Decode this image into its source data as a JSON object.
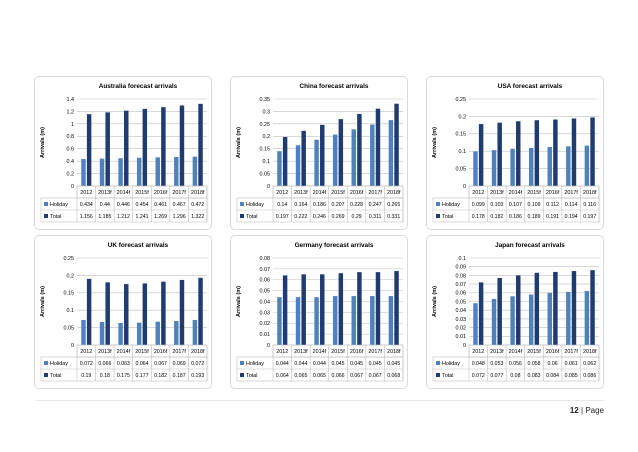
{
  "row_labels": [
    "Holiday",
    "Total"
  ],
  "colors": {
    "holiday": "#4f81bd",
    "total": "#1f3b70",
    "grid": "#bfbfbf",
    "border": "#bfbfbf"
  },
  "footer": {
    "page_number": "12",
    "separator": "|",
    "page_label": "Page"
  },
  "chart_data": [
    {
      "type": "bar",
      "title": "Australia forecast arrivals",
      "ylabel": "Arrivals (m)",
      "categories": [
        "2012",
        "2013f",
        "2014f",
        "2015f",
        "2016f",
        "2017f",
        "2018f"
      ],
      "series": [
        {
          "name": "Holiday",
          "values": [
            0.434,
            0.44,
            0.446,
            0.454,
            0.461,
            0.467,
            0.472
          ]
        },
        {
          "name": "Total",
          "values": [
            1.156,
            1.185,
            1.212,
            1.241,
            1.269,
            1.296,
            1.322
          ]
        }
      ],
      "ylim": [
        0,
        1.4
      ],
      "yticks": [
        "0",
        "0.2",
        "0.4",
        "0.6",
        "0.8",
        "1",
        "1.2",
        "1.4"
      ],
      "data_table": [
        [
          "0.434",
          "0.44",
          "0.446",
          "0.454",
          "0.461",
          "0.467",
          "0.472"
        ],
        [
          "1.156",
          "1.185",
          "1.212",
          "1.241",
          "1.269",
          "1.296",
          "1.322"
        ]
      ]
    },
    {
      "type": "bar",
      "title": "China forecast arrivals",
      "ylabel": "Arrivals (m)",
      "categories": [
        "2012",
        "2013f",
        "2014f",
        "2015f",
        "2016f",
        "2017f",
        "2018f"
      ],
      "series": [
        {
          "name": "Holiday",
          "values": [
            0.14,
            0.164,
            0.186,
            0.207,
            0.228,
            0.247,
            0.265
          ]
        },
        {
          "name": "Total",
          "values": [
            0.197,
            0.222,
            0.246,
            0.269,
            0.29,
            0.311,
            0.331
          ]
        }
      ],
      "ylim": [
        0,
        0.35
      ],
      "yticks": [
        "0",
        "0.05",
        "0.1",
        "0.15",
        "0.2",
        "0.25",
        "0.3",
        "0.35"
      ],
      "data_table": [
        [
          "0.14",
          "0.164",
          "0.186",
          "0.207",
          "0.228",
          "0.247",
          "0.265"
        ],
        [
          "0.197",
          "0.222",
          "0.246",
          "0.269",
          "0.29",
          "0.311",
          "0.331"
        ]
      ]
    },
    {
      "type": "bar",
      "title": "USA forecast arrivals",
      "ylabel": "Arrivals (m)",
      "categories": [
        "2012",
        "2013f",
        "2014f",
        "2015f",
        "2016f",
        "2017f",
        "2018f"
      ],
      "series": [
        {
          "name": "Holiday",
          "values": [
            0.099,
            0.103,
            0.107,
            0.109,
            0.112,
            0.114,
            0.116
          ]
        },
        {
          "name": "Total",
          "values": [
            0.178,
            0.182,
            0.186,
            0.189,
            0.191,
            0.194,
            0.197
          ]
        }
      ],
      "ylim": [
        0,
        0.25
      ],
      "yticks": [
        "0",
        "0.05",
        "0.1",
        "0.15",
        "0.2",
        "0.25"
      ],
      "data_table": [
        [
          "0.099",
          "0.103",
          "0.107",
          "0.109",
          "0.112",
          "0.114",
          "0.116"
        ],
        [
          "0.178",
          "0.182",
          "0.186",
          "0.189",
          "0.191",
          "0.194",
          "0.197"
        ]
      ]
    },
    {
      "type": "bar",
      "title": "UK forecast arrivals",
      "ylabel": "Arrivals (m)",
      "categories": [
        "2012",
        "2013f",
        "2014f",
        "2015f",
        "2016f",
        "2017f",
        "2018f"
      ],
      "series": [
        {
          "name": "Holiday",
          "values": [
            0.072,
            0.066,
            0.063,
            0.064,
            0.067,
            0.069,
            0.072
          ]
        },
        {
          "name": "Total",
          "values": [
            0.19,
            0.18,
            0.175,
            0.177,
            0.182,
            0.187,
            0.193
          ]
        }
      ],
      "ylim": [
        0,
        0.25
      ],
      "yticks": [
        "0",
        "0.05",
        "0.1",
        "0.15",
        "0.2",
        "0.25"
      ],
      "data_table": [
        [
          "0.072",
          "0.066",
          "0.063",
          "0.064",
          "0.067",
          "0.069",
          "0.072"
        ],
        [
          "0.19",
          "0.18",
          "0.175",
          "0.177",
          "0.182",
          "0.187",
          "0.193"
        ]
      ]
    },
    {
      "type": "bar",
      "title": "Germany forecast arrivals",
      "ylabel": "Arrivals (m)",
      "categories": [
        "2012",
        "2013f",
        "2014f",
        "2015f",
        "2016f",
        "2017f",
        "2018f"
      ],
      "series": [
        {
          "name": "Holiday",
          "values": [
            0.044,
            0.044,
            0.044,
            0.045,
            0.045,
            0.045,
            0.045
          ]
        },
        {
          "name": "Total",
          "values": [
            0.064,
            0.065,
            0.065,
            0.066,
            0.067,
            0.067,
            0.068
          ]
        }
      ],
      "ylim": [
        0,
        0.08
      ],
      "yticks": [
        "0",
        "0.01",
        "0.02",
        "0.03",
        "0.04",
        "0.05",
        "0.06",
        "0.07",
        "0.08"
      ],
      "data_table": [
        [
          "0.044",
          "0.044",
          "0.044",
          "0.045",
          "0.045",
          "0.045",
          "0.045"
        ],
        [
          "0.064",
          "0.065",
          "0.065",
          "0.066",
          "0.067",
          "0.067",
          "0.068"
        ]
      ]
    },
    {
      "type": "bar",
      "title": "Japan forecast arrivals",
      "ylabel": "Arrivals (m)",
      "categories": [
        "2012",
        "2013f",
        "2014f",
        "2015f",
        "2016f",
        "2017f",
        "2018f"
      ],
      "series": [
        {
          "name": "Holiday",
          "values": [
            0.048,
            0.053,
            0.056,
            0.058,
            0.06,
            0.061,
            0.062
          ]
        },
        {
          "name": "Total",
          "values": [
            0.072,
            0.077,
            0.08,
            0.083,
            0.084,
            0.085,
            0.086
          ]
        }
      ],
      "ylim": [
        0,
        0.1
      ],
      "yticks": [
        "0",
        "0.01",
        "0.02",
        "0.03",
        "0.04",
        "0.05",
        "0.06",
        "0.07",
        "0.08",
        "0.09",
        "0.1"
      ],
      "data_table": [
        [
          "0.048",
          "0.053",
          "0.056",
          "0.058",
          "0.06",
          "0.061",
          "0.062"
        ],
        [
          "0.072",
          "0.077",
          "0.08",
          "0.083",
          "0.084",
          "0.085",
          "0.086"
        ]
      ]
    }
  ]
}
